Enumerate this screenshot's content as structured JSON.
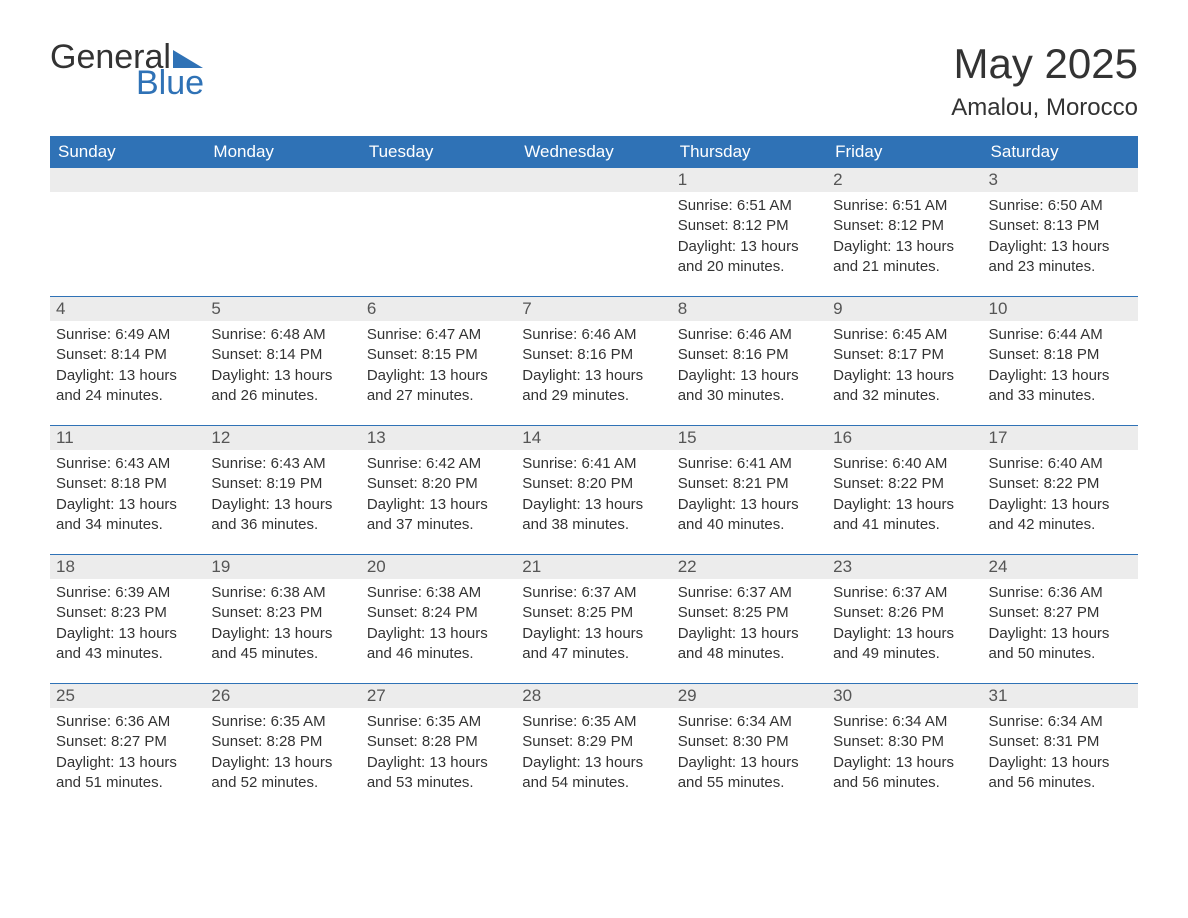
{
  "brand": {
    "general": "General",
    "blue": "Blue"
  },
  "title": "May 2025",
  "location": "Amalou, Morocco",
  "colors": {
    "header_bg": "#2f72b6",
    "header_text": "#ffffff",
    "daynum_bg": "#ececec",
    "text": "#333333",
    "rule": "#2f72b6"
  },
  "weekdays": [
    "Sunday",
    "Monday",
    "Tuesday",
    "Wednesday",
    "Thursday",
    "Friday",
    "Saturday"
  ],
  "weeks": [
    [
      null,
      null,
      null,
      null,
      {
        "n": "1",
        "sunrise": "6:51 AM",
        "sunset": "8:12 PM",
        "daylight": "13 hours and 20 minutes."
      },
      {
        "n": "2",
        "sunrise": "6:51 AM",
        "sunset": "8:12 PM",
        "daylight": "13 hours and 21 minutes."
      },
      {
        "n": "3",
        "sunrise": "6:50 AM",
        "sunset": "8:13 PM",
        "daylight": "13 hours and 23 minutes."
      }
    ],
    [
      {
        "n": "4",
        "sunrise": "6:49 AM",
        "sunset": "8:14 PM",
        "daylight": "13 hours and 24 minutes."
      },
      {
        "n": "5",
        "sunrise": "6:48 AM",
        "sunset": "8:14 PM",
        "daylight": "13 hours and 26 minutes."
      },
      {
        "n": "6",
        "sunrise": "6:47 AM",
        "sunset": "8:15 PM",
        "daylight": "13 hours and 27 minutes."
      },
      {
        "n": "7",
        "sunrise": "6:46 AM",
        "sunset": "8:16 PM",
        "daylight": "13 hours and 29 minutes."
      },
      {
        "n": "8",
        "sunrise": "6:46 AM",
        "sunset": "8:16 PM",
        "daylight": "13 hours and 30 minutes."
      },
      {
        "n": "9",
        "sunrise": "6:45 AM",
        "sunset": "8:17 PM",
        "daylight": "13 hours and 32 minutes."
      },
      {
        "n": "10",
        "sunrise": "6:44 AM",
        "sunset": "8:18 PM",
        "daylight": "13 hours and 33 minutes."
      }
    ],
    [
      {
        "n": "11",
        "sunrise": "6:43 AM",
        "sunset": "8:18 PM",
        "daylight": "13 hours and 34 minutes."
      },
      {
        "n": "12",
        "sunrise": "6:43 AM",
        "sunset": "8:19 PM",
        "daylight": "13 hours and 36 minutes."
      },
      {
        "n": "13",
        "sunrise": "6:42 AM",
        "sunset": "8:20 PM",
        "daylight": "13 hours and 37 minutes."
      },
      {
        "n": "14",
        "sunrise": "6:41 AM",
        "sunset": "8:20 PM",
        "daylight": "13 hours and 38 minutes."
      },
      {
        "n": "15",
        "sunrise": "6:41 AM",
        "sunset": "8:21 PM",
        "daylight": "13 hours and 40 minutes."
      },
      {
        "n": "16",
        "sunrise": "6:40 AM",
        "sunset": "8:22 PM",
        "daylight": "13 hours and 41 minutes."
      },
      {
        "n": "17",
        "sunrise": "6:40 AM",
        "sunset": "8:22 PM",
        "daylight": "13 hours and 42 minutes."
      }
    ],
    [
      {
        "n": "18",
        "sunrise": "6:39 AM",
        "sunset": "8:23 PM",
        "daylight": "13 hours and 43 minutes."
      },
      {
        "n": "19",
        "sunrise": "6:38 AM",
        "sunset": "8:23 PM",
        "daylight": "13 hours and 45 minutes."
      },
      {
        "n": "20",
        "sunrise": "6:38 AM",
        "sunset": "8:24 PM",
        "daylight": "13 hours and 46 minutes."
      },
      {
        "n": "21",
        "sunrise": "6:37 AM",
        "sunset": "8:25 PM",
        "daylight": "13 hours and 47 minutes."
      },
      {
        "n": "22",
        "sunrise": "6:37 AM",
        "sunset": "8:25 PM",
        "daylight": "13 hours and 48 minutes."
      },
      {
        "n": "23",
        "sunrise": "6:37 AM",
        "sunset": "8:26 PM",
        "daylight": "13 hours and 49 minutes."
      },
      {
        "n": "24",
        "sunrise": "6:36 AM",
        "sunset": "8:27 PM",
        "daylight": "13 hours and 50 minutes."
      }
    ],
    [
      {
        "n": "25",
        "sunrise": "6:36 AM",
        "sunset": "8:27 PM",
        "daylight": "13 hours and 51 minutes."
      },
      {
        "n": "26",
        "sunrise": "6:35 AM",
        "sunset": "8:28 PM",
        "daylight": "13 hours and 52 minutes."
      },
      {
        "n": "27",
        "sunrise": "6:35 AM",
        "sunset": "8:28 PM",
        "daylight": "13 hours and 53 minutes."
      },
      {
        "n": "28",
        "sunrise": "6:35 AM",
        "sunset": "8:29 PM",
        "daylight": "13 hours and 54 minutes."
      },
      {
        "n": "29",
        "sunrise": "6:34 AM",
        "sunset": "8:30 PM",
        "daylight": "13 hours and 55 minutes."
      },
      {
        "n": "30",
        "sunrise": "6:34 AM",
        "sunset": "8:30 PM",
        "daylight": "13 hours and 56 minutes."
      },
      {
        "n": "31",
        "sunrise": "6:34 AM",
        "sunset": "8:31 PM",
        "daylight": "13 hours and 56 minutes."
      }
    ]
  ],
  "labels": {
    "sunrise": "Sunrise: ",
    "sunset": "Sunset: ",
    "daylight": "Daylight: "
  }
}
